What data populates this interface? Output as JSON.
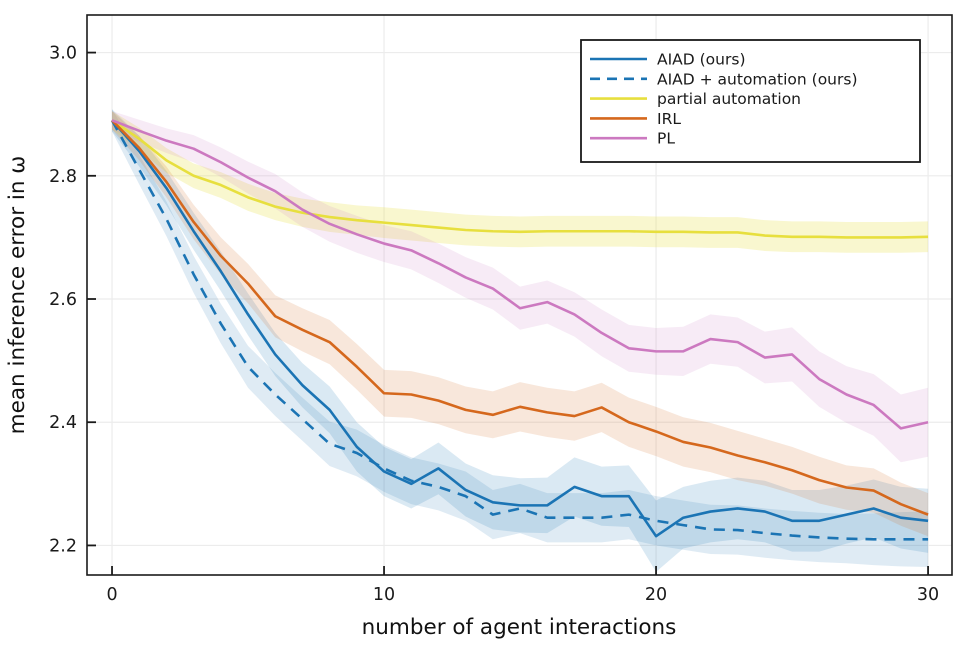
{
  "figure": {
    "background": "#ffffff",
    "frame_color": "#1a1a1a",
    "grid_color": "#ececec",
    "tick_color": "#1a1a1a"
  },
  "axes": {
    "x": {
      "ticks": [
        0,
        10,
        20,
        30
      ],
      "tick_labels": [
        "0",
        "10",
        "20",
        "30"
      ]
    },
    "y": {
      "ticks": [
        3.0,
        2.8,
        2.6,
        2.4,
        2.2
      ],
      "tick_labels": [
        "3.0",
        "2.8",
        "2.6",
        "2.4",
        "2.2"
      ]
    }
  },
  "legend": {
    "entries": [
      "AIAD (ours)",
      "AIAD + automation (ours)",
      "partial automation",
      "IRL",
      "PL"
    ]
  },
  "chart_data": {
    "type": "line",
    "title": "",
    "xlabel": "number of agent interactions",
    "ylabel": "mean inference error in ω",
    "xlim": [
      -0.92,
      30.88
    ],
    "ylim": [
      2.152,
      3.061
    ],
    "grid": true,
    "legend_position": "top-right",
    "x": [
      0,
      1,
      2,
      3,
      4,
      5,
      6,
      7,
      8,
      9,
      10,
      11,
      12,
      13,
      14,
      15,
      16,
      17,
      18,
      19,
      20,
      21,
      22,
      23,
      24,
      25,
      26,
      27,
      28,
      29,
      30
    ],
    "series": [
      {
        "name": "AIAD (ours)",
        "color": "#1b74b4",
        "style": "solid",
        "band_opacity": 0.16,
        "values": [
          2.89,
          2.84,
          2.78,
          2.71,
          2.645,
          2.575,
          2.51,
          2.46,
          2.42,
          2.36,
          2.32,
          2.3,
          2.325,
          2.29,
          2.27,
          2.265,
          2.265,
          2.295,
          2.28,
          2.28,
          2.215,
          2.245,
          2.255,
          2.26,
          2.255,
          2.24,
          2.24,
          2.25,
          2.26,
          2.245,
          2.24
        ],
        "band": [
          0.018,
          0.025,
          0.028,
          0.03,
          0.032,
          0.034,
          0.035,
          0.036,
          0.038,
          0.04,
          0.04,
          0.04,
          0.042,
          0.043,
          0.044,
          0.044,
          0.045,
          0.048,
          0.048,
          0.05,
          0.058,
          0.05,
          0.05,
          0.05,
          0.05,
          0.05,
          0.05,
          0.047,
          0.047,
          0.05,
          0.052
        ]
      },
      {
        "name": "AIAD + automation (ours)",
        "color": "#1b74b4",
        "style": "dashed",
        "band_opacity": 0.14,
        "values": [
          2.89,
          2.81,
          2.73,
          2.64,
          2.56,
          2.49,
          2.445,
          2.405,
          2.365,
          2.35,
          2.325,
          2.305,
          2.295,
          2.28,
          2.25,
          2.26,
          2.245,
          2.245,
          2.245,
          2.25,
          2.24,
          2.233,
          2.226,
          2.225,
          2.22,
          2.216,
          2.213,
          2.211,
          2.21,
          2.21,
          2.21
        ],
        "band": [
          0.018,
          0.024,
          0.028,
          0.03,
          0.032,
          0.034,
          0.035,
          0.035,
          0.036,
          0.038,
          0.038,
          0.038,
          0.038,
          0.04,
          0.04,
          0.04,
          0.04,
          0.04,
          0.04,
          0.04,
          0.04,
          0.04,
          0.04,
          0.04,
          0.04,
          0.04,
          0.04,
          0.04,
          0.042,
          0.044,
          0.045
        ]
      },
      {
        "name": "partial automation",
        "color": "#e7df3e",
        "style": "solid",
        "band_opacity": 0.25,
        "values": [
          2.89,
          2.86,
          2.825,
          2.8,
          2.785,
          2.765,
          2.75,
          2.74,
          2.733,
          2.728,
          2.724,
          2.72,
          2.716,
          2.712,
          2.71,
          2.709,
          2.71,
          2.71,
          2.71,
          2.71,
          2.709,
          2.709,
          2.708,
          2.708,
          2.703,
          2.701,
          2.701,
          2.7,
          2.7,
          2.7,
          2.701
        ],
        "band": [
          0.015,
          0.018,
          0.02,
          0.02,
          0.021,
          0.022,
          0.022,
          0.023,
          0.024,
          0.024,
          0.025,
          0.025,
          0.025,
          0.025,
          0.025,
          0.025,
          0.025,
          0.025,
          0.025,
          0.025,
          0.025,
          0.025,
          0.025,
          0.025,
          0.025,
          0.025,
          0.025,
          0.025,
          0.025,
          0.025,
          0.025
        ]
      },
      {
        "name": "IRL",
        "color": "#d5681d",
        "style": "solid",
        "band_opacity": 0.16,
        "values": [
          2.89,
          2.845,
          2.79,
          2.725,
          2.67,
          2.625,
          2.572,
          2.55,
          2.53,
          2.49,
          2.447,
          2.445,
          2.435,
          2.42,
          2.412,
          2.425,
          2.416,
          2.41,
          2.424,
          2.4,
          2.385,
          2.368,
          2.359,
          2.346,
          2.335,
          2.322,
          2.306,
          2.294,
          2.289,
          2.267,
          2.25
        ],
        "band": [
          0.015,
          0.02,
          0.025,
          0.028,
          0.03,
          0.032,
          0.034,
          0.035,
          0.036,
          0.037,
          0.038,
          0.038,
          0.038,
          0.038,
          0.038,
          0.04,
          0.04,
          0.04,
          0.04,
          0.04,
          0.04,
          0.04,
          0.04,
          0.04,
          0.038,
          0.038,
          0.038,
          0.036,
          0.036,
          0.035,
          0.035
        ]
      },
      {
        "name": "PL",
        "color": "#cc79c0",
        "style": "solid",
        "band_opacity": 0.15,
        "values": [
          2.89,
          2.873,
          2.857,
          2.844,
          2.822,
          2.797,
          2.775,
          2.745,
          2.722,
          2.705,
          2.69,
          2.679,
          2.658,
          2.635,
          2.617,
          2.585,
          2.595,
          2.575,
          2.545,
          2.52,
          2.515,
          2.515,
          2.535,
          2.53,
          2.505,
          2.51,
          2.47,
          2.445,
          2.428,
          2.39,
          2.4
        ],
        "band": [
          0.015,
          0.018,
          0.02,
          0.022,
          0.024,
          0.026,
          0.028,
          0.028,
          0.029,
          0.03,
          0.03,
          0.031,
          0.032,
          0.033,
          0.034,
          0.035,
          0.035,
          0.036,
          0.038,
          0.038,
          0.038,
          0.04,
          0.04,
          0.04,
          0.042,
          0.044,
          0.045,
          0.046,
          0.05,
          0.055,
          0.056
        ]
      }
    ]
  }
}
